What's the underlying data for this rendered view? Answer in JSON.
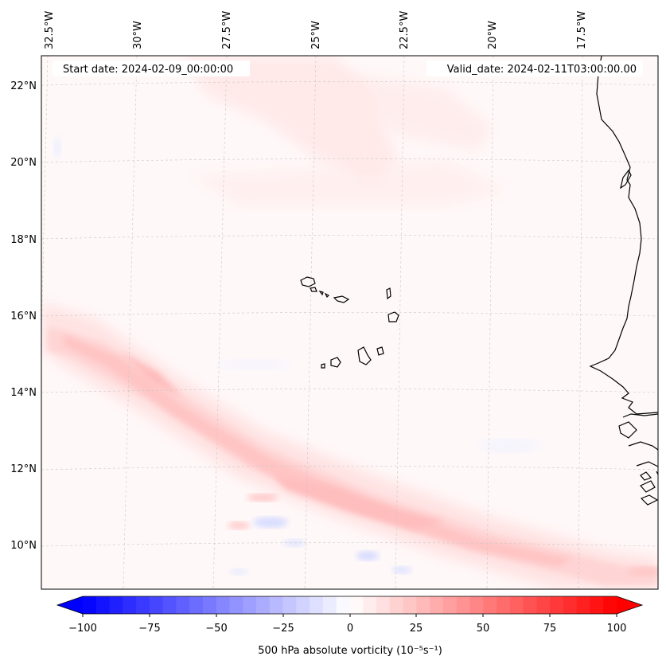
{
  "map": {
    "start_date_label": "Start date: 2024-02-09_00:00:00",
    "valid_date_label": "Valid_date: 2024-02-11T03:00:00.00",
    "lon_labels": [
      "32.5°W",
      "30°W",
      "27.5°W",
      "25°W",
      "22.5°W",
      "20°W",
      "17.5°W"
    ],
    "lat_labels": [
      "22°N",
      "20°N",
      "18°N",
      "16°N",
      "14°N",
      "12°N",
      "10°N"
    ],
    "variable": "500 hPa absolute vorticity"
  },
  "colorbar": {
    "label": "500 hPa absolute vorticity (10⁻⁵s⁻¹)",
    "ticks": [
      "−100",
      "−75",
      "−50",
      "−25",
      "0",
      "25",
      "50",
      "75",
      "100"
    ],
    "min": -100,
    "max": 100,
    "n_levels": 40,
    "colormap": "bwr",
    "neg_color": "#0000ff",
    "zero_color": "#ffffff",
    "pos_color": "#ff0000"
  }
}
